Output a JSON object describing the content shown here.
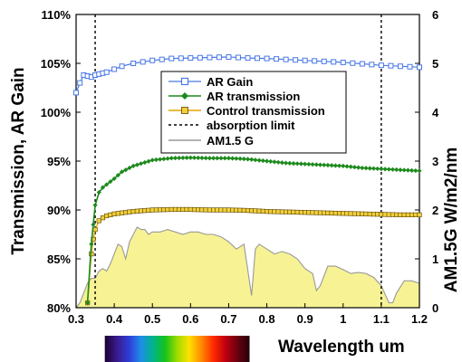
{
  "chart_data": {
    "type": "line",
    "x_label": "Wavelength um",
    "y_left_label": "Transmission, AR Gain",
    "y_right_label": "AM1.5G W/m2/nm",
    "x_range": [
      0.3,
      1.2
    ],
    "y_left_range": [
      80,
      110
    ],
    "y_right_range": [
      0,
      6
    ],
    "x_ticks": [
      0.3,
      0.4,
      0.5,
      0.6,
      0.7,
      0.8,
      0.9,
      1.0,
      1.1,
      1.2
    ],
    "x_tick_labels": [
      "0.3",
      "0.4",
      "0.5",
      "0.6",
      "0.7",
      "0.8",
      "0.9",
      "1",
      "1.1",
      "1.2"
    ],
    "y_left_ticks": [
      80,
      85,
      90,
      95,
      100,
      105,
      110
    ],
    "y_left_tick_labels": [
      "80%",
      "85%",
      "90%",
      "95%",
      "100%",
      "105%",
      "110%"
    ],
    "y_right_ticks": [
      0,
      1,
      2,
      3,
      4,
      5,
      6
    ],
    "y_right_tick_labels": [
      "0",
      "1",
      "2",
      "3",
      "4",
      "5",
      "6"
    ],
    "legend_position": "center-top",
    "colors": {
      "ar_gain": "#4a78e6",
      "ar_transmission": "#1c8a1c",
      "control_transmission": "#e6a400",
      "control_marker_fill": "#f0d03c",
      "absorption_limit": "#000000",
      "am15g_line": "#999999",
      "am15g_fill": "#f7f294"
    },
    "series": [
      {
        "name": "AR Gain",
        "axis": "left",
        "style": "line-open-square",
        "x": [
          0.3,
          0.31,
          0.32,
          0.33,
          0.34,
          0.35,
          0.36,
          0.37,
          0.38,
          0.4,
          0.42,
          0.45,
          0.5,
          0.55,
          0.6,
          0.65,
          0.7,
          0.75,
          0.8,
          0.85,
          0.9,
          0.95,
          1.0,
          1.05,
          1.1,
          1.15,
          1.2
        ],
        "y": [
          102.0,
          103.0,
          103.8,
          103.7,
          103.6,
          103.8,
          103.9,
          104.0,
          104.1,
          104.4,
          104.7,
          105.0,
          105.3,
          105.5,
          105.55,
          105.6,
          105.65,
          105.55,
          105.5,
          105.4,
          105.3,
          105.2,
          105.1,
          104.95,
          104.8,
          104.7,
          104.6
        ]
      },
      {
        "name": "AR transmission",
        "axis": "left",
        "style": "line-filled-diamond",
        "x": [
          0.33,
          0.34,
          0.345,
          0.35,
          0.36,
          0.37,
          0.38,
          0.4,
          0.42,
          0.45,
          0.5,
          0.55,
          0.6,
          0.65,
          0.7,
          0.75,
          0.8,
          0.85,
          0.9,
          0.95,
          1.0,
          1.05,
          1.1,
          1.15,
          1.2
        ],
        "y": [
          80.5,
          86.5,
          88.5,
          90.5,
          91.8,
          92.3,
          92.6,
          93.2,
          93.9,
          94.5,
          95.1,
          95.3,
          95.35,
          95.3,
          95.3,
          95.2,
          95.0,
          94.8,
          94.7,
          94.6,
          94.5,
          94.3,
          94.2,
          94.1,
          94.0
        ]
      },
      {
        "name": "Control transmission",
        "axis": "left",
        "style": "line-filled-square",
        "x": [
          0.33,
          0.34,
          0.345,
          0.35,
          0.36,
          0.37,
          0.38,
          0.4,
          0.45,
          0.5,
          0.55,
          0.6,
          0.65,
          0.7,
          0.75,
          0.8,
          0.85,
          0.9,
          0.95,
          1.0,
          1.05,
          1.1,
          1.15,
          1.2
        ],
        "y": [
          80.5,
          85.5,
          87.0,
          88.0,
          88.9,
          89.2,
          89.4,
          89.6,
          89.85,
          90.0,
          90.05,
          90.05,
          90.0,
          90.0,
          89.95,
          89.85,
          89.8,
          89.75,
          89.7,
          89.65,
          89.6,
          89.55,
          89.5,
          89.5
        ]
      },
      {
        "name": "absorption limit",
        "axis": "left",
        "style": "dashed-vertical",
        "x_positions": [
          0.35,
          1.1
        ]
      },
      {
        "name": "AM1.5 G",
        "axis": "right",
        "style": "area",
        "x": [
          0.3,
          0.31,
          0.32,
          0.33,
          0.34,
          0.35,
          0.36,
          0.37,
          0.38,
          0.39,
          0.4,
          0.41,
          0.42,
          0.43,
          0.44,
          0.45,
          0.46,
          0.47,
          0.48,
          0.49,
          0.5,
          0.52,
          0.54,
          0.56,
          0.58,
          0.6,
          0.62,
          0.64,
          0.66,
          0.68,
          0.7,
          0.72,
          0.74,
          0.76,
          0.77,
          0.78,
          0.8,
          0.82,
          0.84,
          0.86,
          0.88,
          0.9,
          0.92,
          0.93,
          0.94,
          0.96,
          0.98,
          1.0,
          1.02,
          1.04,
          1.06,
          1.08,
          1.1,
          1.12,
          1.13,
          1.14,
          1.16,
          1.18,
          1.2
        ],
        "y": [
          0.0,
          0.1,
          0.3,
          0.5,
          0.6,
          0.6,
          0.75,
          0.8,
          0.75,
          0.9,
          1.1,
          1.3,
          1.25,
          1.0,
          1.35,
          1.5,
          1.65,
          1.6,
          1.6,
          1.5,
          1.55,
          1.55,
          1.6,
          1.55,
          1.5,
          1.55,
          1.55,
          1.5,
          1.5,
          1.45,
          1.35,
          1.2,
          1.3,
          0.25,
          1.2,
          1.3,
          1.2,
          1.1,
          1.15,
          1.1,
          1.0,
          0.8,
          0.7,
          0.35,
          0.45,
          0.85,
          0.85,
          0.78,
          0.7,
          0.72,
          0.7,
          0.62,
          0.45,
          0.1,
          0.1,
          0.3,
          0.55,
          0.55,
          0.5
        ]
      }
    ]
  },
  "spectrum_bar": {
    "x_range": [
      0.38,
      0.75
    ],
    "colors": [
      "#1a0030",
      "#3a1a8c",
      "#2f3cd8",
      "#1e8ee8",
      "#00b48a",
      "#16c21c",
      "#9edc00",
      "#ffe000",
      "#ff8a00",
      "#ff2a00",
      "#c00010",
      "#6a0010",
      "#240008"
    ]
  }
}
